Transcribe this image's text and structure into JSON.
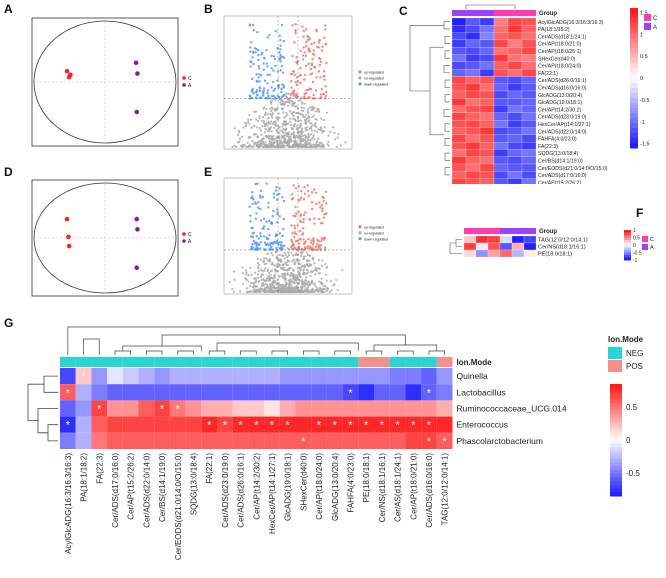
{
  "panels": [
    "A",
    "B",
    "C",
    "D",
    "E",
    "F",
    "G"
  ],
  "colors": {
    "group_C": "#ff3cb4",
    "group_A": "#a040ff",
    "neg": "#26d6d6",
    "pos": "#f58f8a",
    "high": "#ff1a1a",
    "mid": "#ffffff",
    "low": "#2020ff",
    "volcano_up": "#f47a6e",
    "volcano_down": "#5b9bff",
    "volcano_ns": "#aaaaaa"
  },
  "panel_C": {
    "group_title": "Group",
    "legend": [
      "C",
      "A"
    ],
    "scale_ticks": [
      "1.5",
      "1",
      "0.5",
      "0",
      "-0.5",
      "-1",
      "-1.5"
    ],
    "rows": [
      "AcylGlcADG(16:3/16:3/16:3)",
      "PA(18:1/18:2)",
      "Cer/ADS(d18:1/24:1)",
      "Cer/AP(t18:0/21:0)",
      "Cer/AP(t18:0/25:1)",
      "SHexCer(d40:0)",
      "Cer/AP(t18:0/24:0)",
      "FA(22:1)",
      "Cer/ADS(d26:0/16:1)",
      "Cer/ADS(d16:0/16:0)",
      "GlcADG(13:0/20:4)",
      "GlcADG(19:0/18:1)",
      "Cer/AP(t14:2/30:2)",
      "Cer/ADS(d23:0/19:0)",
      "HexCer/AP(t14:1/27:1)",
      "Cer/ADS(d22:0/14:0)",
      "FAHFA(4:0/23:0)",
      "FA(22:3)",
      "SQDG(13:0/18:4)",
      "Cer/BS(d14:1/19:0)",
      "Cer/EODS(d21:0/14:0/O/15:0)",
      "Cer/ADS(d17:0/16:0)",
      "Cer/AP(t15:2/26:2)"
    ]
  },
  "panel_F": {
    "group_title": "Group",
    "legend": [
      "C",
      "A"
    ],
    "scale_ticks": [
      "1",
      "0.5",
      "0",
      "-0.5",
      "-1"
    ],
    "rows": [
      "TAG(12:0/12:0/14:1)",
      "Cer/NS(d18:1/16:1)",
      "PE(18:0/18:1)"
    ]
  },
  "panel_G": {
    "annotation_title": "Ion.Mode",
    "legend": [
      "NEG",
      "POS"
    ],
    "scale_ticks": [
      "0.5",
      "0",
      "-0.5"
    ],
    "rows": [
      "Quinella",
      "Lactobacillus",
      "Ruminococcaceae_UCG.014",
      "Enterococcus",
      "Phascolarctobacterium"
    ],
    "columns": [
      "AcylGlcADG(16:3/16:3/16:3)",
      "PA(18:1/18:2)",
      "FA(22:3)",
      "Cer/ADS(d17:0/16:0)",
      "Cer/AP(t15:2/26:2)",
      "Cer/ADS(d22:0/14:0)",
      "Cer/BS(d14:1/19:0)",
      "Cer/EODS(d21:0/14:0/O/15:0)",
      "SQDG(13:0/18:4)",
      "FA(22:1)",
      "Cer/ADS(d23:0/19:0)",
      "Cer/ADS(d26:0/16:1)",
      "Cer/AP(t14:2/30:2)",
      "HexCer/AP(t14:1/27:1)",
      "GlcADG(19:0/18:1)",
      "SHexCer(d40:0)",
      "Cer/AP(t18:0/24:0)",
      "GlcADG(13:0/20:4)",
      "FAHFA(4:0/23:0)",
      "PE(18:0/18:1)",
      "Cer/NS(d18:1/16:1)",
      "Cer/AS(d18:1/24:1)",
      "Cer/AP(t18:0/21:0)",
      "Cer/ADS(d16:0/16:0)",
      "TAG(12:0/12:0/14:1)"
    ]
  },
  "chart_data": [
    {
      "panel": "A",
      "type": "scatter",
      "legend": [
        "C",
        "A"
      ],
      "series": [
        {
          "name": "C",
          "color": "#ff2020",
          "points": [
            [
              -0.55,
              0.18
            ],
            [
              -0.52,
              0.08
            ],
            [
              -0.5,
              0.12
            ]
          ]
        },
        {
          "name": "A",
          "color": "#8a1aa0",
          "points": [
            [
              0.45,
              0.32
            ],
            [
              0.47,
              0.14
            ],
            [
              0.46,
              -0.5
            ]
          ]
        }
      ]
    },
    {
      "panel": "D",
      "type": "scatter",
      "legend": [
        "C",
        "A"
      ],
      "series": [
        {
          "name": "C",
          "color": "#ff2020",
          "points": [
            [
              -0.55,
              0.35
            ],
            [
              -0.53,
              0.02
            ],
            [
              -0.52,
              -0.15
            ]
          ]
        },
        {
          "name": "A",
          "color": "#8a1aa0",
          "points": [
            [
              0.46,
              0.35
            ],
            [
              0.47,
              0.16
            ],
            [
              0.46,
              -0.55
            ]
          ]
        }
      ]
    },
    {
      "panel": "B",
      "type": "scatter",
      "legend": [
        "up-regulated",
        "no-regulated",
        "down-regulated"
      ],
      "up_fraction": 0.09,
      "down_fraction": 0.09
    },
    {
      "panel": "E",
      "type": "scatter",
      "legend": [
        "up-regulated",
        "no-regulated",
        "down-regulated"
      ],
      "up_fraction": 0.08,
      "down_fraction": 0.07
    },
    {
      "panel": "C",
      "type": "heatmap",
      "values": [
        [
          -1.6,
          -1.2,
          -1.4,
          0.9,
          1.3,
          1.2
        ],
        [
          -1.5,
          -1.3,
          -1.0,
          1.0,
          1.4,
          1.1
        ],
        [
          -1.3,
          -1.5,
          -0.9,
          1.1,
          1.2,
          1.0
        ],
        [
          -1.4,
          -1.1,
          -1.2,
          1.3,
          0.9,
          1.2
        ],
        [
          -1.2,
          -1.3,
          -1.1,
          1.0,
          1.1,
          1.3
        ],
        [
          -1.0,
          -1.4,
          -1.3,
          1.4,
          1.0,
          0.9
        ],
        [
          -1.3,
          -1.2,
          -1.0,
          1.1,
          1.3,
          1.0
        ],
        [
          -1.1,
          -1.0,
          -1.4,
          1.2,
          1.0,
          1.3
        ],
        [
          1.3,
          1.1,
          1.2,
          -1.2,
          -1.3,
          -1.1
        ],
        [
          1.2,
          1.4,
          1.0,
          -1.1,
          -1.4,
          -1.2
        ],
        [
          1.1,
          1.3,
          1.2,
          -1.3,
          -1.1,
          -1.2
        ],
        [
          1.4,
          1.0,
          1.1,
          -1.2,
          -1.2,
          -1.1
        ],
        [
          1.0,
          1.2,
          1.3,
          -1.4,
          -1.0,
          -1.1
        ],
        [
          1.3,
          1.1,
          1.0,
          -1.1,
          -1.3,
          -1.0
        ],
        [
          1.2,
          1.3,
          1.1,
          -1.0,
          -1.4,
          -1.2
        ],
        [
          1.1,
          1.2,
          1.4,
          -1.3,
          -1.2,
          -1.0
        ],
        [
          1.3,
          1.0,
          1.2,
          -1.2,
          -1.1,
          -1.3
        ],
        [
          1.2,
          1.4,
          1.1,
          -1.0,
          -1.3,
          -1.4
        ],
        [
          1.0,
          1.3,
          1.2,
          -1.4,
          -1.1,
          -1.0
        ],
        [
          1.4,
          1.1,
          1.0,
          -1.2,
          -1.3,
          -1.1
        ],
        [
          1.2,
          1.0,
          1.3,
          -1.1,
          -1.2,
          -1.2
        ],
        [
          1.1,
          1.3,
          1.2,
          -1.3,
          -1.0,
          -1.3
        ],
        [
          1.3,
          1.2,
          1.1,
          -1.2,
          -1.4,
          -1.0
        ]
      ]
    },
    {
      "panel": "F",
      "type": "heatmap",
      "values": [
        [
          0.3,
          1.1,
          1.0,
          -0.2,
          -1.2,
          -1.0
        ],
        [
          1.0,
          -0.1,
          0.9,
          -0.9,
          0.4,
          -1.2
        ],
        [
          0.2,
          -0.6,
          0.5,
          0.8,
          -0.4,
          0.1
        ]
      ]
    },
    {
      "panel": "G",
      "type": "heatmap",
      "ion_mode": [
        "NEG",
        "NEG",
        "NEG",
        "NEG",
        "NEG",
        "NEG",
        "NEG",
        "NEG",
        "NEG",
        "NEG",
        "NEG",
        "NEG",
        "NEG",
        "NEG",
        "NEG",
        "NEG",
        "NEG",
        "NEG",
        "NEG",
        "POS",
        "POS",
        "NEG",
        "NEG",
        "NEG",
        "POS"
      ],
      "values": [
        [
          -0.7,
          0.2,
          -0.4,
          -0.1,
          -0.2,
          -0.3,
          -0.4,
          -0.3,
          -0.3,
          -0.3,
          -0.3,
          -0.3,
          -0.3,
          -0.3,
          -0.4,
          -0.4,
          -0.4,
          -0.4,
          -0.4,
          -0.4,
          -0.4,
          -0.5,
          -0.5,
          -0.6,
          -0.4
        ],
        [
          0.6,
          -0.3,
          -0.5,
          -0.6,
          -0.6,
          -0.6,
          -0.6,
          -0.6,
          -0.6,
          -0.6,
          -0.6,
          -0.6,
          -0.6,
          -0.6,
          -0.6,
          -0.6,
          -0.6,
          -0.6,
          -0.7,
          -0.8,
          -0.6,
          -0.6,
          -0.8,
          -0.6,
          -0.5
        ],
        [
          -0.6,
          -0.4,
          0.7,
          0.4,
          0.4,
          0.6,
          0.7,
          0.5,
          0.4,
          0.3,
          0.3,
          0.2,
          0.2,
          0.1,
          0.3,
          0.4,
          0.4,
          0.4,
          0.4,
          0.4,
          0.4,
          0.4,
          0.4,
          0.4,
          0.3
        ],
        [
          -0.8,
          -0.3,
          0.6,
          0.7,
          0.7,
          0.7,
          0.7,
          0.7,
          0.7,
          0.8,
          0.7,
          0.8,
          0.8,
          0.8,
          0.8,
          0.8,
          0.8,
          0.8,
          0.8,
          0.8,
          0.8,
          0.8,
          0.8,
          0.8,
          0.8
        ],
        [
          -0.5,
          -0.3,
          0.5,
          0.6,
          0.6,
          0.6,
          0.6,
          0.6,
          0.6,
          0.6,
          0.6,
          0.6,
          0.6,
          0.6,
          0.6,
          0.6,
          0.6,
          0.6,
          0.6,
          0.6,
          0.6,
          0.6,
          0.7,
          0.7,
          0.6
        ]
      ],
      "stars": [
        [
          0,
          1
        ],
        [
          1,
          0
        ],
        [
          1,
          18
        ],
        [
          1,
          23
        ],
        [
          2,
          2
        ],
        [
          2,
          6
        ],
        [
          2,
          7
        ],
        [
          3,
          0
        ],
        [
          3,
          9
        ],
        [
          3,
          10
        ],
        [
          3,
          11
        ],
        [
          3,
          12
        ],
        [
          3,
          13
        ],
        [
          3,
          14
        ],
        [
          3,
          16
        ],
        [
          3,
          17
        ],
        [
          3,
          18
        ],
        [
          3,
          19
        ],
        [
          3,
          20
        ],
        [
          3,
          21
        ],
        [
          3,
          22
        ],
        [
          3,
          23
        ],
        [
          4,
          15
        ],
        [
          4,
          23
        ],
        [
          4,
          24
        ]
      ]
    }
  ]
}
